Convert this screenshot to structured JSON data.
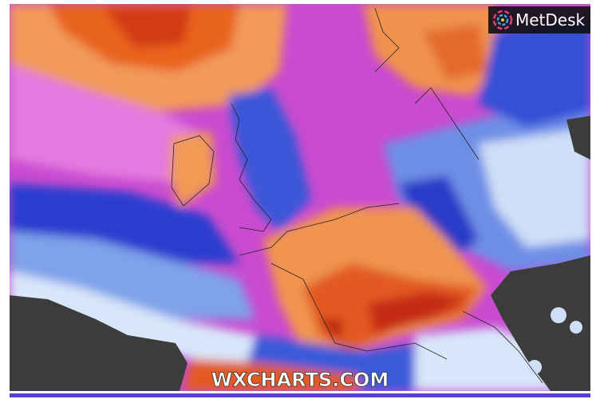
{
  "logo": {
    "text": "MetDesk"
  },
  "watermark": "WXCHARTS.COM"
}
